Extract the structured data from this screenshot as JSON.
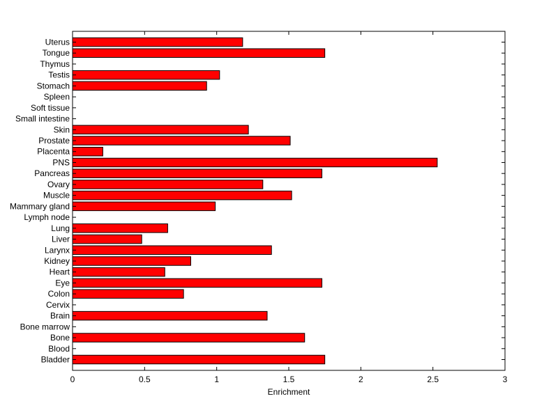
{
  "chart_data": {
    "type": "bar",
    "orientation": "horizontal",
    "xlabel": "Enrichment",
    "ylabel": "",
    "xlim": [
      0,
      3
    ],
    "x_ticks": [
      "0",
      "0.5",
      "1",
      "1.5",
      "2",
      "2.5",
      "3"
    ],
    "categories": [
      "Uterus",
      "Tongue",
      "Thymus",
      "Testis",
      "Stomach",
      "Spleen",
      "Soft tissue",
      "Small intestine",
      "Skin",
      "Prostate",
      "Placenta",
      "PNS",
      "Pancreas",
      "Ovary",
      "Muscle",
      "Mammary gland",
      "Lymph node",
      "Lung",
      "Liver",
      "Larynx",
      "Kidney",
      "Heart",
      "Eye",
      "Colon",
      "Cervix",
      "Brain",
      "Bone marrow",
      "Bone",
      "Blood",
      "Bladder"
    ],
    "values": [
      1.18,
      1.75,
      0,
      1.02,
      0.93,
      0,
      0,
      0,
      1.22,
      1.51,
      0.21,
      2.53,
      1.73,
      1.32,
      1.52,
      0.99,
      0,
      0.66,
      0.48,
      1.38,
      0.82,
      0.64,
      1.73,
      0.77,
      0,
      1.35,
      0,
      1.61,
      0,
      1.75
    ],
    "bar_color": "#ff0000",
    "grid": false
  }
}
